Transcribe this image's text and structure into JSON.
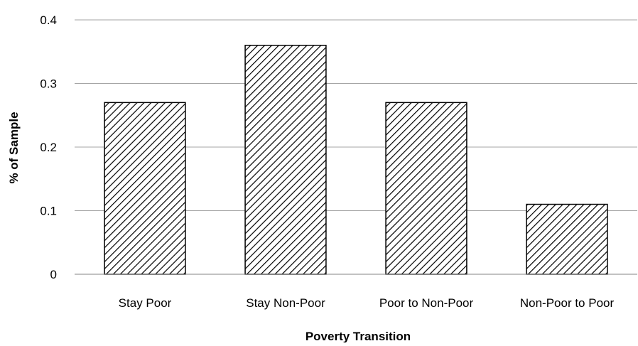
{
  "chart_data": {
    "type": "bar",
    "title": "",
    "xlabel": "Poverty Transition",
    "ylabel": "% of Sample",
    "categories": [
      "Stay Poor",
      "Stay Non-Poor",
      "Poor to Non-Poor",
      "Non-Poor to Poor"
    ],
    "values": [
      0.27,
      0.36,
      0.27,
      0.11
    ],
    "ylim": [
      0,
      0.4
    ],
    "yticks": [
      "0",
      "0.1",
      "0.2",
      "0.3",
      "0.4"
    ],
    "grid": true,
    "legend": "none",
    "bar_fill": "diagonal-hatch",
    "colors": {
      "bar_stroke": "#000000",
      "hatch": "#000000",
      "gridline": "#a6a6a6",
      "axis": "#868686"
    }
  }
}
